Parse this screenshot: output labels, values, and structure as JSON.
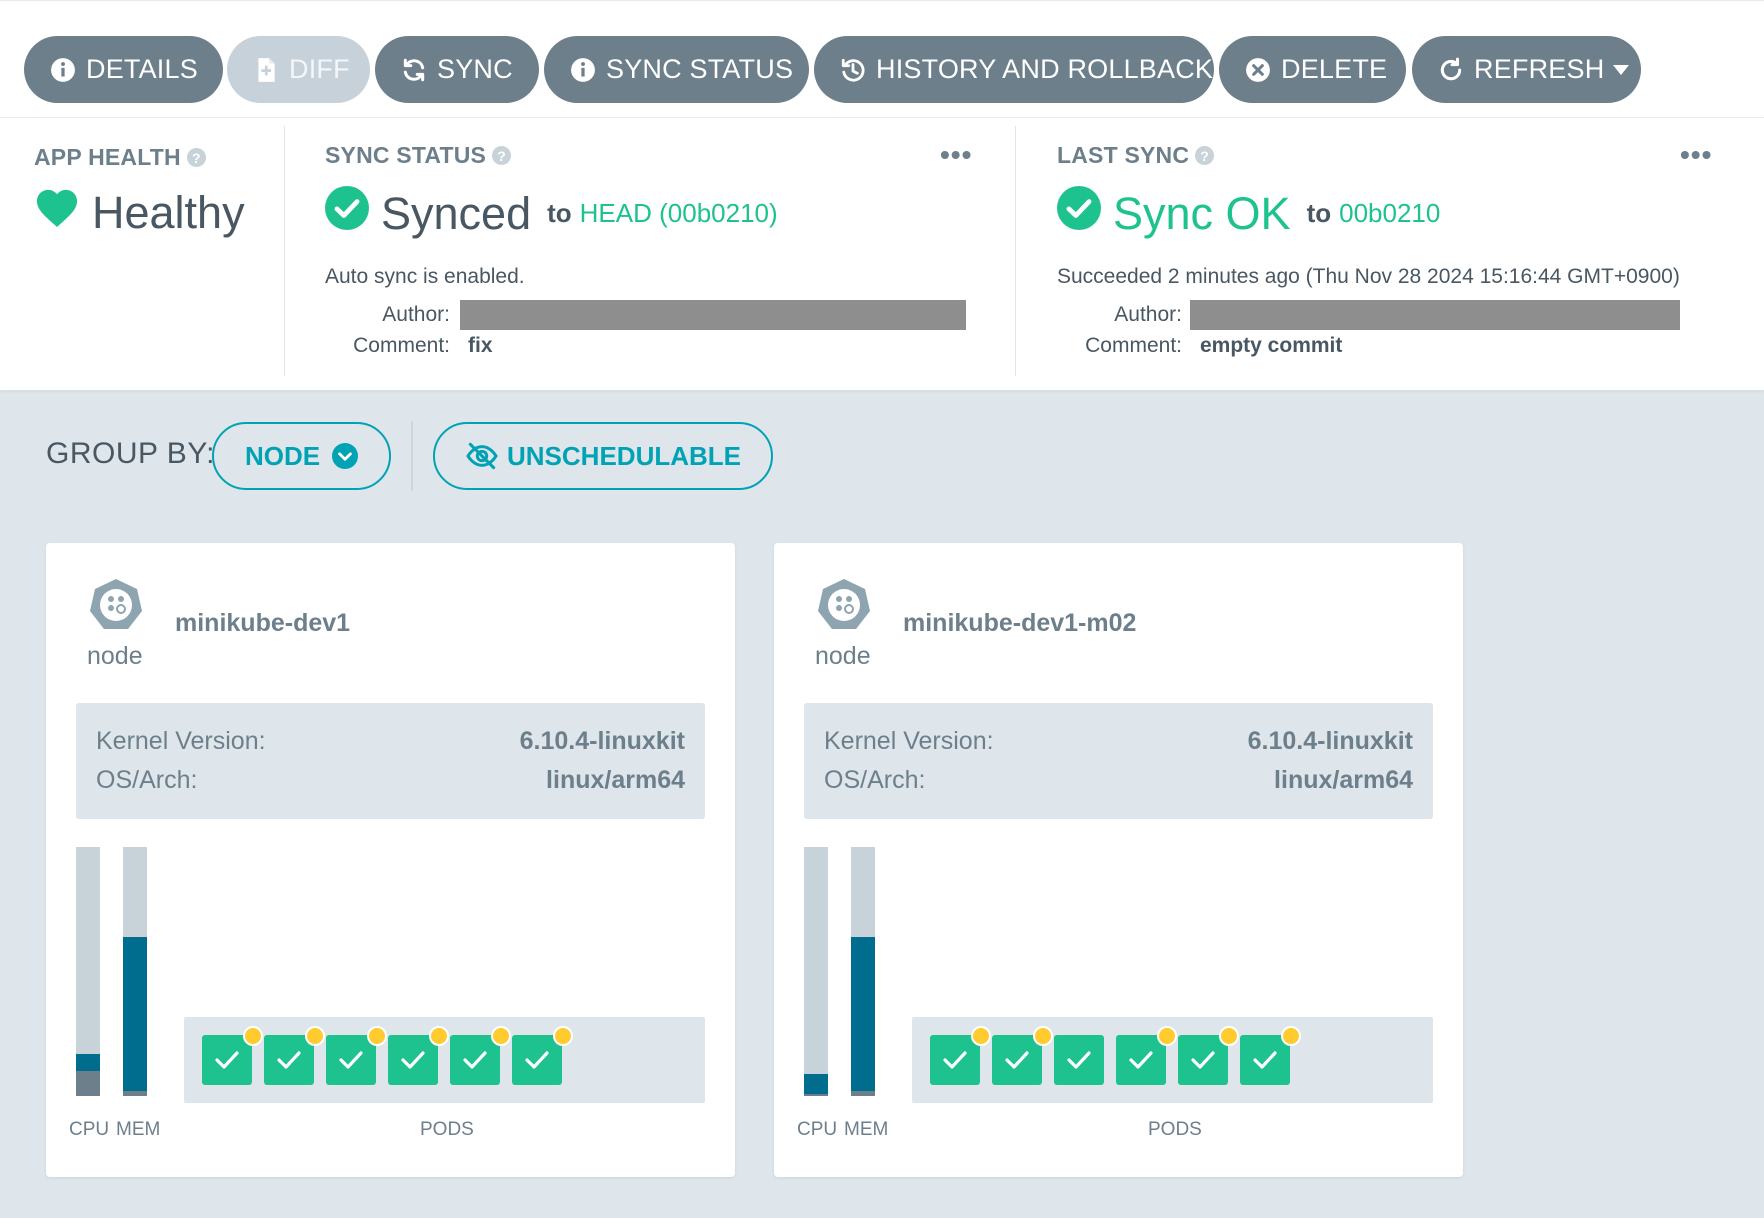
{
  "toolbar": {
    "details": "DETAILS",
    "diff": "DIFF",
    "sync": "SYNC",
    "sync_status": "SYNC STATUS",
    "history": "HISTORY AND ROLLBACK",
    "delete": "DELETE",
    "refresh": "REFRESH"
  },
  "app_health": {
    "title": "APP HEALTH",
    "value": "Healthy",
    "help": "?"
  },
  "sync_status": {
    "title": "SYNC STATUS",
    "help": "?",
    "value": "Synced",
    "to": "to",
    "revision": "HEAD (00b0210)",
    "auto_sync": "Auto sync is enabled.",
    "author_label": "Author:",
    "comment_label": "Comment:",
    "comment": "fix",
    "more": "•••"
  },
  "last_sync": {
    "title": "LAST SYNC",
    "help": "?",
    "value": "Sync OK",
    "to": "to",
    "revision": "00b0210",
    "succeeded": "Succeeded 2 minutes ago (Thu Nov 28 2024 15:16:44 GMT+0900)",
    "author_label": "Author:",
    "comment_label": "Comment:",
    "comment": "empty commit",
    "more": "•••"
  },
  "group_by": {
    "label": "GROUP BY:",
    "node_button": "NODE",
    "unschedulable_button": "UNSCHEDULABLE"
  },
  "colors": {
    "accent_green": "#1ec28e",
    "accent_teal": "#00a2b3",
    "button_gray": "#6d7f8b",
    "bar_fill": "#006d8f",
    "warning_dot": "#ffcb2f"
  },
  "nodes": [
    {
      "kind": "node",
      "name": "minikube-dev1",
      "kernel_label": "Kernel Version:",
      "kernel_version": "6.10.4-linuxkit",
      "os_label": "OS/Arch:",
      "os_arch": "linux/arm64",
      "cpu_usage_pct": 17,
      "cpu_label": "CPU",
      "mem_usage_pct": 64,
      "mem_label": "MEM",
      "pods_label": "PODS",
      "pod_count": 6,
      "pods_with_warning": 6
    },
    {
      "kind": "node",
      "name": "minikube-dev1-m02",
      "kernel_label": "Kernel Version:",
      "kernel_version": "6.10.4-linuxkit",
      "os_label": "OS/Arch:",
      "os_arch": "linux/arm64",
      "cpu_usage_pct": 9,
      "cpu_label": "CPU",
      "mem_usage_pct": 64,
      "mem_label": "MEM",
      "pods_label": "PODS",
      "pod_count": 6,
      "pods_with_warning": 5
    }
  ]
}
